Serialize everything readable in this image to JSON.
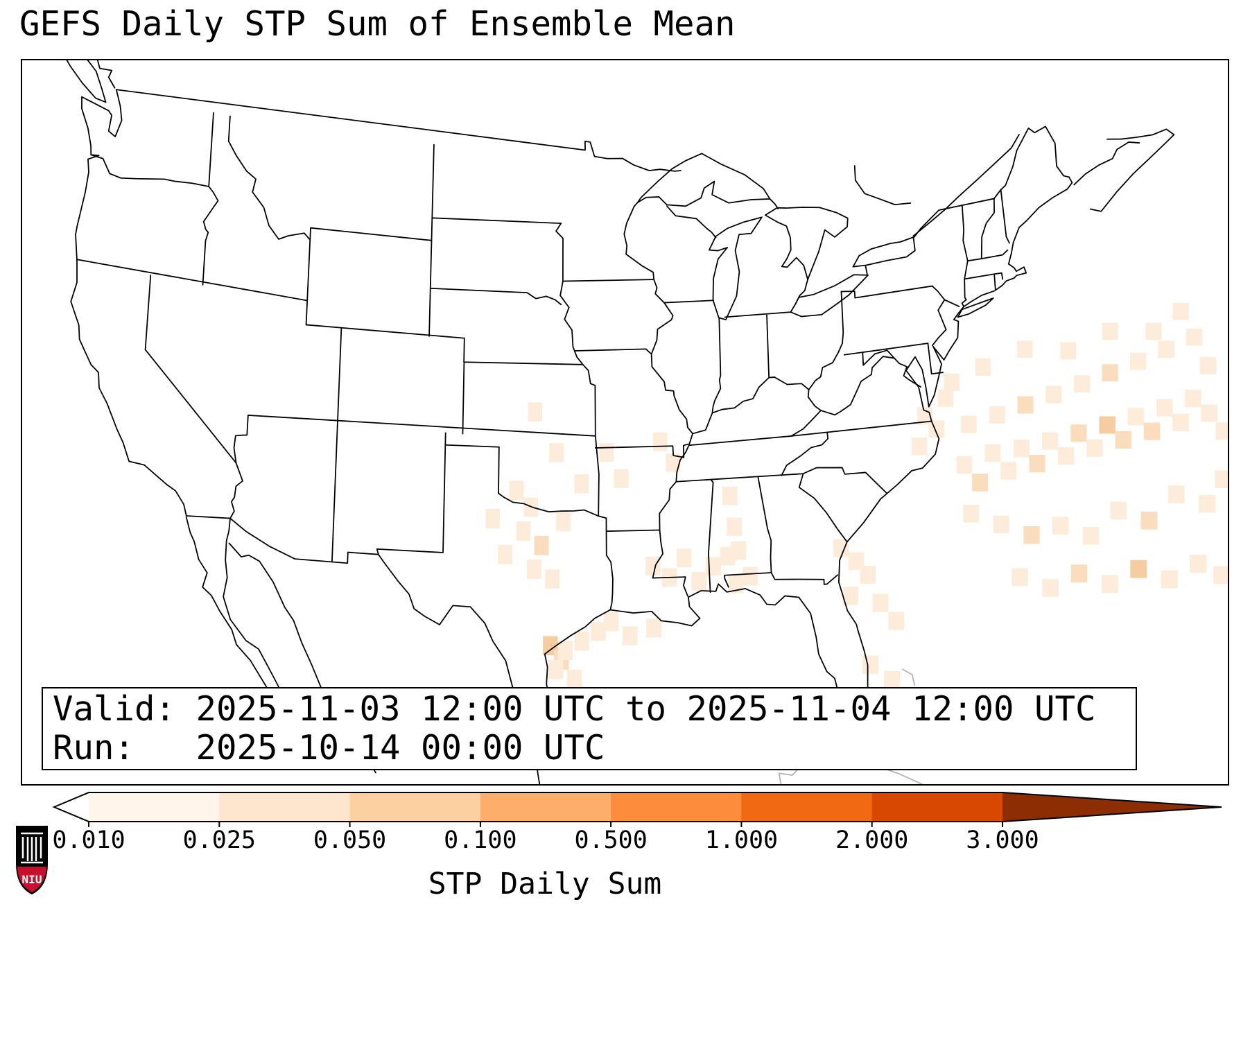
{
  "title": "GEFS Daily STP Sum of Ensemble Mean",
  "info_box": {
    "valid_line": "Valid: 2025-11-03 12:00 UTC to 2025-11-04 12:00 UTC",
    "run_line": "Run:   2025-10-14 00:00 UTC"
  },
  "colorbar": {
    "label": "STP Daily Sum",
    "tick_labels": [
      "0.010",
      "0.025",
      "0.050",
      "0.100",
      "0.500",
      "1.000",
      "2.000",
      "3.000"
    ],
    "segment_colors": [
      "#fff5eb",
      "#fee6ce",
      "#fdd0a2",
      "#fdae6b",
      "#fd8d3c",
      "#f16913",
      "#d94801"
    ],
    "under_arrow_color": "#ffffff",
    "over_arrow_color": "#8c2d04",
    "outline_color": "#000000"
  },
  "logo": {
    "text": "NIU",
    "shield_color": "#c8102e",
    "castle_color": "#000000"
  },
  "chart_data": {
    "type": "heatmap",
    "title": "GEFS Daily STP Sum of Ensemble Mean",
    "colorbar_label": "STP Daily Sum",
    "valid_period": "2025-11-03 12:00 UTC to 2025-11-04 12:00 UTC",
    "run": "2025-10-14 00:00 UTC",
    "levels": [
      0.01,
      0.025,
      0.05,
      0.1,
      0.5,
      1.0,
      2.0,
      3.0
    ],
    "level_colors": [
      "#fff5eb",
      "#fee6ce",
      "#fdd0a2",
      "#fdae6b",
      "#fd8d3c",
      "#f16913",
      "#d94801"
    ],
    "cell_fill_colors": [
      "#fcecd9",
      "#f9ddbd",
      "#f6cda1",
      "#f2b077"
    ],
    "cell_size_deg": 0.8,
    "cells": [
      [
        -99,
        34.7,
        0.02
      ],
      [
        -98.2,
        34,
        0.02
      ],
      [
        -98.6,
        33,
        0.02
      ],
      [
        -97.6,
        32.4,
        0.035
      ],
      [
        -98,
        31.4,
        0.02
      ],
      [
        -97,
        31,
        0.02
      ],
      [
        -96.4,
        33.4,
        0.02
      ],
      [
        -99.6,
        32,
        0.02
      ],
      [
        -100.3,
        33.5,
        0.02
      ],
      [
        -98,
        38,
        0.02
      ],
      [
        -96.8,
        36.3,
        0.02
      ],
      [
        -95.4,
        35,
        0.02
      ],
      [
        -94,
        36.3,
        0.02
      ],
      [
        -93.2,
        35.2,
        0.02
      ],
      [
        -91,
        36.7,
        0.02
      ],
      [
        -90.3,
        35.8,
        0.02
      ],
      [
        -97.1,
        28.2,
        0.06
      ],
      [
        -96.5,
        27.6,
        0.035
      ],
      [
        -96.3,
        28,
        0.02
      ],
      [
        -95.4,
        28.4,
        0.02
      ],
      [
        -94.5,
        28.8,
        0.02
      ],
      [
        -93.8,
        29.2,
        0.02
      ],
      [
        -96.8,
        27.2,
        0.02
      ],
      [
        -95.8,
        26.8,
        0.02
      ],
      [
        -92.8,
        28.6,
        0.02
      ],
      [
        -91.5,
        28.9,
        0.02
      ],
      [
        -91.5,
        31.5,
        0.02
      ],
      [
        -90.6,
        31,
        0.02
      ],
      [
        -89.8,
        31.8,
        0.02
      ],
      [
        -89,
        30.8,
        0.02
      ],
      [
        -88.2,
        31.4,
        0.02
      ],
      [
        -87.4,
        31.8,
        0.02
      ],
      [
        -87,
        30.6,
        0.02
      ],
      [
        -86.2,
        30.9,
        0.02
      ],
      [
        -87.2,
        34.3,
        0.02
      ],
      [
        -87,
        33,
        0.02
      ],
      [
        -86.8,
        32,
        0.02
      ],
      [
        -81.2,
        31.8,
        0.02
      ],
      [
        -80.4,
        31.2,
        0.02
      ],
      [
        -79.8,
        30.6,
        0.02
      ],
      [
        -80.8,
        29.8,
        0.02
      ],
      [
        -79.2,
        29.4,
        0.02
      ],
      [
        -78.4,
        28.6,
        0.02
      ],
      [
        -79.9,
        26.9,
        0.02
      ],
      [
        -78.8,
        26.2,
        0.02
      ],
      [
        -76.2,
        36.8,
        0.02
      ],
      [
        -75.6,
        36.2,
        0.02
      ],
      [
        -76.6,
        35.6,
        0.02
      ],
      [
        -75,
        37.4,
        0.02
      ],
      [
        -74.2,
        34.6,
        0.02
      ],
      [
        -73.4,
        33.8,
        0.035
      ],
      [
        -72.6,
        34.9,
        0.02
      ],
      [
        -71.8,
        34.1,
        0.02
      ],
      [
        -71,
        34.9,
        0.02
      ],
      [
        -70.2,
        34.2,
        0.035
      ],
      [
        -69.4,
        35,
        0.02
      ],
      [
        -68.6,
        34.3,
        0.02
      ],
      [
        -67.8,
        35.1,
        0.035
      ],
      [
        -67,
        34.4,
        0.02
      ],
      [
        -66.2,
        35.2,
        0.06
      ],
      [
        -65.4,
        34.5,
        0.035
      ],
      [
        -64.6,
        35.3,
        0.02
      ],
      [
        -63.8,
        34.6,
        0.035
      ],
      [
        -63,
        35.4,
        0.02
      ],
      [
        -62.2,
        34.7,
        0.02
      ],
      [
        -61.4,
        35.5,
        0.02
      ],
      [
        -60.6,
        34.8,
        0.02
      ],
      [
        -73.8,
        36.2,
        0.02
      ],
      [
        -72.2,
        36.4,
        0.02
      ],
      [
        -70.6,
        36.6,
        0.035
      ],
      [
        -69,
        36.8,
        0.02
      ],
      [
        -67.4,
        37,
        0.02
      ],
      [
        -65.8,
        37.2,
        0.035
      ],
      [
        -64.2,
        37.4,
        0.02
      ],
      [
        -62.6,
        37.6,
        0.02
      ],
      [
        -61,
        37.8,
        0.02
      ],
      [
        -74,
        32.6,
        0.02
      ],
      [
        -72.4,
        32,
        0.02
      ],
      [
        -70.8,
        31.4,
        0.035
      ],
      [
        -69.2,
        31.6,
        0.02
      ],
      [
        -67.6,
        31,
        0.02
      ],
      [
        -66,
        31.8,
        0.02
      ],
      [
        -64.4,
        31.2,
        0.035
      ],
      [
        -62.8,
        32,
        0.02
      ],
      [
        -61.2,
        31.4,
        0.02
      ],
      [
        -60.2,
        32.2,
        0.02
      ],
      [
        -71.6,
        29.8,
        0.02
      ],
      [
        -70,
        29.2,
        0.02
      ],
      [
        -68.4,
        29.6,
        0.035
      ],
      [
        -66.8,
        29,
        0.02
      ],
      [
        -65.2,
        29.4,
        0.06
      ],
      [
        -63.6,
        28.8,
        0.02
      ],
      [
        -62,
        29.2,
        0.02
      ],
      [
        -60.8,
        28.6,
        0.02
      ],
      [
        -74.6,
        38,
        0.02
      ],
      [
        -72.8,
        38.4,
        0.02
      ],
      [
        -70.4,
        38.8,
        0.02
      ],
      [
        -68,
        38.4,
        0.02
      ],
      [
        -65.6,
        38.8,
        0.02
      ],
      [
        -63.2,
        38.4,
        0.02
      ],
      [
        -61.6,
        38.9,
        0.02
      ],
      [
        -60.4,
        36.6,
        0.02
      ],
      [
        -59.9,
        34,
        0.02
      ]
    ]
  }
}
